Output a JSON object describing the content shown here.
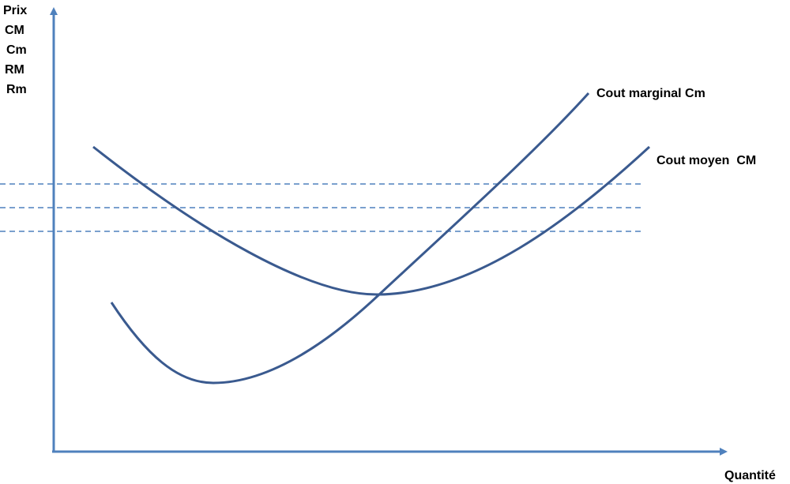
{
  "y_axis": {
    "labels": [
      "Prix",
      "CM",
      "Cm",
      "RM",
      "Rm"
    ]
  },
  "x_axis": {
    "label": "Quantité"
  },
  "curves": {
    "marginal_cost": {
      "label": "Cout marginal Cm"
    },
    "average_cost": {
      "label": "Cout moyen  CM"
    }
  },
  "colors": {
    "axis": "#4f81bd",
    "curve": "#3a5a8f",
    "dashed": "#4f81bd",
    "text": "#000000"
  }
}
